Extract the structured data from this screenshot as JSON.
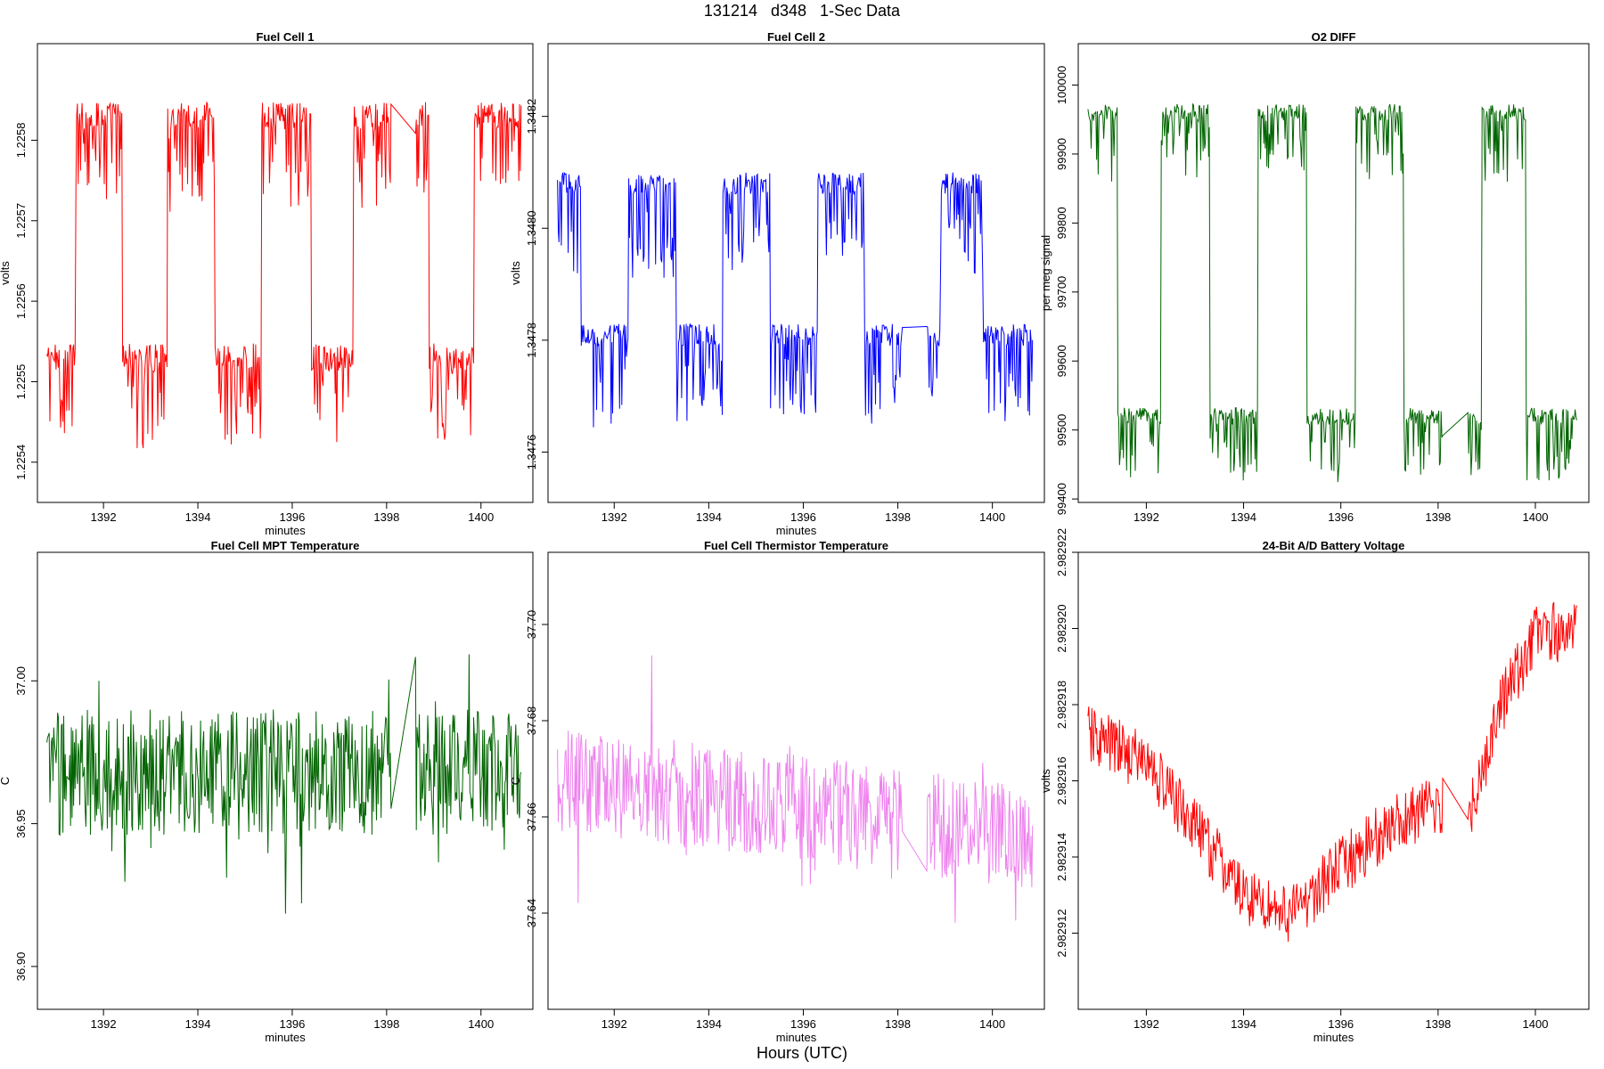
{
  "figure": {
    "title": "131214   d348   1-Sec Data",
    "footer": "Hours (UTC)"
  },
  "chart_data": [
    {
      "id": "fc1",
      "type": "line",
      "title": "Fuel Cell 1",
      "xlabel": "minutes",
      "ylabel": "volts",
      "color": "#ff0000",
      "xlim": [
        1390.6,
        1401.1
      ],
      "ylim": [
        1.22535,
        1.22592
      ],
      "xticks": [
        1392,
        1394,
        1396,
        1398,
        1400
      ],
      "yticks": [
        1.2254,
        1.2255,
        1.2256,
        1.2257,
        1.2258
      ],
      "ytick_labels": [
        "1.2254",
        "1.2255",
        "1.2256",
        "1.2257",
        "1.2258"
      ],
      "wave": "square",
      "low": 1.22553,
      "high": 1.22583,
      "noise": 3.5e-05,
      "spikes": -8e-05,
      "transitions": [
        [
          1391.4,
          1
        ],
        [
          1392.4,
          0
        ],
        [
          1393.35,
          1
        ],
        [
          1394.35,
          0
        ],
        [
          1395.35,
          1
        ],
        [
          1396.4,
          0
        ],
        [
          1397.3,
          1
        ],
        [
          1398.9,
          0
        ],
        [
          1399.85,
          1
        ]
      ],
      "gap": [
        1398.1,
        1398.6
      ]
    },
    {
      "id": "fc2",
      "type": "line",
      "title": "Fuel Cell 2",
      "xlabel": "minutes",
      "ylabel": "volts",
      "color": "#0000ff",
      "xlim": [
        1390.6,
        1401.1
      ],
      "ylim": [
        1.34751,
        1.34833
      ],
      "xticks": [
        1392,
        1394,
        1396,
        1398,
        1400
      ],
      "yticks": [
        1.3476,
        1.3478,
        1.348,
        1.3482
      ],
      "ytick_labels": [
        "1.3476",
        "1.3478",
        "1.3480",
        "1.3482"
      ],
      "wave": "square",
      "low": 1.34781,
      "high": 1.34808,
      "noise": 4e-05,
      "spikes": -0.00012,
      "start_level": 1,
      "transitions": [
        [
          1391.3,
          0
        ],
        [
          1392.3,
          1
        ],
        [
          1393.3,
          0
        ],
        [
          1394.3,
          1
        ],
        [
          1395.3,
          0
        ],
        [
          1396.3,
          1
        ],
        [
          1397.3,
          0
        ],
        [
          1398.9,
          1
        ],
        [
          1399.8,
          0
        ]
      ],
      "gap": [
        1398.1,
        1398.6
      ]
    },
    {
      "id": "o2",
      "type": "line",
      "title": "O2 DIFF",
      "xlabel": "",
      "ylabel": "per meg signal",
      "color": "#006400",
      "xlim": [
        1390.6,
        1401.1
      ],
      "ylim": [
        99395,
        100060
      ],
      "xticks": [
        1392,
        1394,
        1396,
        1398,
        1400
      ],
      "yticks": [
        99400,
        99500,
        99600,
        99700,
        99800,
        99900,
        100000
      ],
      "ytick_labels": [
        "99400",
        "99500",
        "99600",
        "99700",
        "99800",
        "99900",
        "100000"
      ],
      "wave": "square",
      "low": 99520,
      "high": 99960,
      "noise": 25,
      "spikes": -70,
      "start_level": 1,
      "transitions": [
        [
          1391.4,
          0
        ],
        [
          1392.3,
          1
        ],
        [
          1393.3,
          0
        ],
        [
          1394.3,
          1
        ],
        [
          1395.3,
          0
        ],
        [
          1396.3,
          1
        ],
        [
          1397.3,
          0
        ],
        [
          1398.9,
          1
        ],
        [
          1399.8,
          0
        ]
      ],
      "gap": [
        1398.1,
        1398.6
      ]
    },
    {
      "id": "mpt",
      "type": "line",
      "title": "Fuel Cell MPT Temperature",
      "xlabel": "minutes",
      "ylabel": "C",
      "color": "#006400",
      "xlim": [
        1390.6,
        1401.1
      ],
      "ylim": [
        36.885,
        37.045
      ],
      "xticks": [
        1392,
        1394,
        1396,
        1398,
        1400
      ],
      "yticks": [
        36.9,
        36.95,
        37.0
      ],
      "ytick_labels": [
        "36.90",
        "36.95",
        "37.00"
      ],
      "wave": "noise",
      "base_start": 36.968,
      "base_end": 36.968,
      "noise": 0.022,
      "gap": [
        1398.1,
        1398.6
      ]
    },
    {
      "id": "thermistor",
      "type": "line",
      "title": "Fuel Cell Thermistor Temperature",
      "xlabel": "minutes",
      "ylabel": "C",
      "color": "#ee82ee",
      "xlim": [
        1390.6,
        1401.1
      ],
      "ylim": [
        37.62,
        37.715
      ],
      "xticks": [
        1392,
        1394,
        1396,
        1398,
        1400
      ],
      "yticks": [
        37.64,
        37.66,
        37.68,
        37.7
      ],
      "ytick_labels": [
        "37.64",
        "37.66",
        "37.68",
        "37.70"
      ],
      "wave": "noise",
      "base_start": 37.668,
      "base_end": 37.656,
      "noise": 0.011,
      "gap": [
        1398.1,
        1398.6
      ]
    },
    {
      "id": "battery",
      "type": "line",
      "title": "24-Bit A/D Battery Voltage",
      "xlabel": "minutes",
      "ylabel": "volts",
      "color": "#ff0000",
      "xlim": [
        1390.6,
        1401.1
      ],
      "ylim": [
        2.98291,
        2.982922
      ],
      "xticks": [
        1392,
        1394,
        1396,
        1398,
        1400
      ],
      "yticks": [
        2.982912,
        2.982914,
        2.982916,
        2.982918,
        2.98292,
        2.982922
      ],
      "ytick_labels": [
        "2.982912",
        "2.982914",
        "2.982916",
        "2.982918",
        "2.982920",
        "2.982922"
      ],
      "wave": "trend",
      "trend_points": [
        [
          1390.8,
          2.9829172
        ],
        [
          1392,
          2.9829165
        ],
        [
          1393,
          2.9829148
        ],
        [
          1394,
          2.982913
        ],
        [
          1395,
          2.9829125
        ],
        [
          1395.8,
          2.9829135
        ],
        [
          1397,
          2.9829148
        ],
        [
          1398,
          2.9829154
        ],
        [
          1398.6,
          2.982915
        ],
        [
          1399.3,
          2.982918
        ],
        [
          1400,
          2.9829198
        ],
        [
          1400.8,
          2.98292
        ]
      ],
      "noise": 8e-07,
      "gap": [
        1398.1,
        1398.6
      ]
    }
  ]
}
